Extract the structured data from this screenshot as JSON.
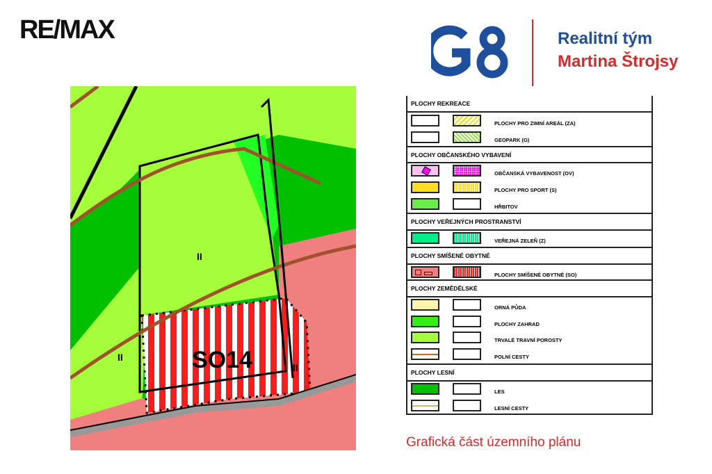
{
  "header": {
    "remax_logo": "RE/MAX",
    "g8_logo": "G8",
    "team_line1": "Realitní tým",
    "team_line2": "Martina Štrojsy"
  },
  "map": {
    "label_main": "SO14",
    "label_ii": "II",
    "colors": {
      "meadow": "#a4ff3a",
      "forest": "#00c000",
      "garden": "#22ff22",
      "mixed": "#f08080",
      "stripe": "#ff1a1a",
      "path": "#a0522d"
    }
  },
  "legend": {
    "sections": [
      {
        "title": "PLOCHY REKREACE",
        "rows": [
          {
            "label": "PLOCHY PRO ZIMNÍ AREÁL (ZA)",
            "left": "#ffffff",
            "right": "#e6e600",
            "right_pattern": "diagonal-hatch"
          },
          {
            "label": "GEOPARK (G)",
            "left": "#ffffff",
            "right": "#8fe63a",
            "right_pattern": "crosshatch"
          }
        ]
      },
      {
        "title": "PLOCHY OBČANSKÉHO VYBAVENÍ",
        "rows": [
          {
            "label": "OBČANSKÁ VYBAVENOST (OV)",
            "left": "#ffc0f0",
            "right": "#ff00ff",
            "left_pattern": "diamond",
            "right_pattern": "dots"
          },
          {
            "label": "PLOCHY PRO SPORT (S)",
            "left": "#ffdd22",
            "right": "#ffdd22",
            "right_pattern": "vertical-stripes"
          },
          {
            "label": "HŘBITOV",
            "left": "#66ee44",
            "right": "#ffffff",
            "left_pattern": "crosses"
          }
        ]
      },
      {
        "title": "PLOCHY VEŘEJNÝCH PROSTRANSTVÍ",
        "rows": [
          {
            "label": "VEŘEJNÁ ZELEŇ (Z)",
            "left": "#00ee88",
            "right": "#00ee88",
            "right_pattern": "vertical-stripes"
          }
        ]
      },
      {
        "title": "PLOCHY SMÍŠENÉ OBYTNÉ",
        "rows": [
          {
            "label": "PLOCHY SMÍŠENÉ OBYTNÉ (SO)",
            "left": "#f08080",
            "right": "#ff1a1a",
            "left_pattern": "houses",
            "right_pattern": "vertical-stripes"
          }
        ]
      },
      {
        "title": "PLOCHY ZEMĚDĚLSKÉ",
        "rows": [
          {
            "label": "ORNÁ PŮDA",
            "left": "#fff3b0",
            "right": "#ffffff"
          },
          {
            "label": "PLOCHY ZAHRAD",
            "left": "#33ee11",
            "right": "#ffffff"
          },
          {
            "label": "TRVALÉ TRAVNÍ POROSTY",
            "left": "#a4ff3a",
            "right": "#ffffff"
          },
          {
            "label": "POLNÍ CESTY",
            "left": "#ffffff",
            "right": "#ffffff",
            "left_pattern": "line-orange"
          }
        ]
      },
      {
        "title": "PLOCHY LESNÍ",
        "rows": [
          {
            "label": "LES",
            "left": "#00c000",
            "right": "#ffffff"
          },
          {
            "label": "LESNÍ CESTY",
            "left": "#ffffff",
            "right": "#ffffff",
            "left_pattern": "line-tan"
          }
        ]
      }
    ]
  },
  "caption": "Grafická část územního plánu"
}
